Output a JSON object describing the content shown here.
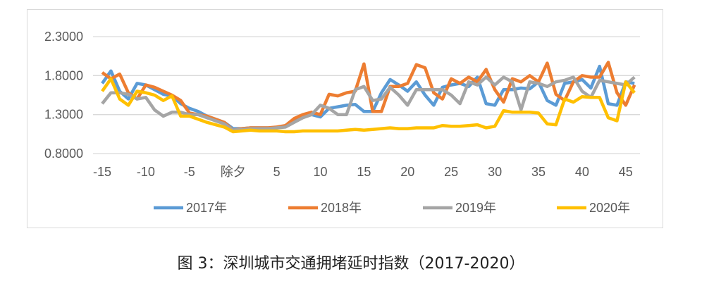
{
  "caption": "图 3：深圳城市交通拥堵延时指数（2017-2020）",
  "chart_data": {
    "type": "line",
    "title": "",
    "xlabel": "",
    "ylabel": "",
    "ylim": [
      0.8,
      2.3
    ],
    "yticks": [
      "0.8000",
      "1.3000",
      "1.8000",
      "2.3000"
    ],
    "ytick_values": [
      0.8,
      1.3,
      1.8,
      2.3
    ],
    "xticks": [
      {
        "v": -15,
        "label": "-15"
      },
      {
        "v": -10,
        "label": "-10"
      },
      {
        "v": -5,
        "label": "-5"
      },
      {
        "v": 0,
        "label": "除夕"
      },
      {
        "v": 5,
        "label": "5"
      },
      {
        "v": 10,
        "label": "10"
      },
      {
        "v": 15,
        "label": "15"
      },
      {
        "v": 20,
        "label": "20"
      },
      {
        "v": 25,
        "label": "25"
      },
      {
        "v": 30,
        "label": "30"
      },
      {
        "v": 35,
        "label": "35"
      },
      {
        "v": 40,
        "label": "40"
      },
      {
        "v": 45,
        "label": "45"
      }
    ],
    "x_start": -15,
    "grid": true,
    "legend_position": "bottom",
    "series": [
      {
        "name": "2017年",
        "color": "#5B9BD5",
        "values": [
          1.7,
          1.86,
          1.6,
          1.5,
          1.7,
          1.68,
          1.62,
          1.56,
          1.54,
          1.44,
          1.38,
          1.34,
          1.28,
          1.24,
          1.2,
          1.12,
          1.12,
          1.13,
          1.13,
          1.13,
          1.13,
          1.15,
          1.22,
          1.28,
          1.3,
          1.27,
          1.38,
          1.4,
          1.42,
          1.43,
          1.34,
          1.34,
          1.58,
          1.75,
          1.68,
          1.6,
          1.72,
          1.55,
          1.42,
          1.65,
          1.68,
          1.7,
          1.66,
          1.78,
          1.44,
          1.42,
          1.62,
          1.62,
          1.64,
          1.63,
          1.72,
          1.48,
          1.42,
          1.7,
          1.72,
          1.75,
          1.64,
          1.92,
          1.44,
          1.42,
          1.72,
          1.7
        ]
      },
      {
        "name": "2018年",
        "color": "#ED7D31",
        "values": [
          1.84,
          1.76,
          1.82,
          1.58,
          1.5,
          1.68,
          1.65,
          1.6,
          1.55,
          1.48,
          1.32,
          1.3,
          1.28,
          1.24,
          1.2,
          1.1,
          1.12,
          1.13,
          1.13,
          1.13,
          1.14,
          1.16,
          1.25,
          1.3,
          1.33,
          1.3,
          1.56,
          1.54,
          1.58,
          1.6,
          1.95,
          1.34,
          1.34,
          1.66,
          1.66,
          1.7,
          1.94,
          1.9,
          1.58,
          1.5,
          1.76,
          1.7,
          1.78,
          1.72,
          1.88,
          1.62,
          1.46,
          1.76,
          1.72,
          1.8,
          1.72,
          1.96,
          1.56,
          1.48,
          1.72,
          1.8,
          1.78,
          1.78,
          1.97,
          1.58,
          1.42,
          1.68
        ]
      },
      {
        "name": "2019年",
        "color": "#A5A5A5",
        "values": [
          1.44,
          1.58,
          1.58,
          1.56,
          1.5,
          1.52,
          1.36,
          1.28,
          1.33,
          1.33,
          1.3,
          1.3,
          1.26,
          1.22,
          1.18,
          1.1,
          1.11,
          1.12,
          1.12,
          1.12,
          1.13,
          1.14,
          1.2,
          1.26,
          1.3,
          1.42,
          1.38,
          1.3,
          1.3,
          1.62,
          1.66,
          1.48,
          1.5,
          1.65,
          1.55,
          1.42,
          1.62,
          1.62,
          1.62,
          1.62,
          1.55,
          1.44,
          1.72,
          1.68,
          1.78,
          1.68,
          1.78,
          1.72,
          1.36,
          1.72,
          1.7,
          1.66,
          1.72,
          1.74,
          1.78,
          1.6,
          1.52,
          1.74,
          1.72,
          1.7,
          1.68,
          1.78
        ]
      },
      {
        "name": "2020年",
        "color": "#FFC000",
        "values": [
          1.6,
          1.76,
          1.5,
          1.42,
          1.6,
          1.58,
          1.55,
          1.48,
          1.54,
          1.28,
          1.28,
          1.24,
          1.2,
          1.17,
          1.14,
          1.08,
          1.09,
          1.1,
          1.09,
          1.09,
          1.09,
          1.08,
          1.08,
          1.09,
          1.09,
          1.09,
          1.09,
          1.09,
          1.1,
          1.11,
          1.1,
          1.11,
          1.12,
          1.13,
          1.12,
          1.12,
          1.13,
          1.13,
          1.13,
          1.16,
          1.15,
          1.15,
          1.16,
          1.17,
          1.13,
          1.15,
          1.35,
          1.33,
          1.33,
          1.33,
          1.32,
          1.18,
          1.17,
          1.5,
          1.46,
          1.53,
          1.52,
          1.52,
          1.26,
          1.22,
          1.72,
          1.58
        ]
      }
    ]
  }
}
